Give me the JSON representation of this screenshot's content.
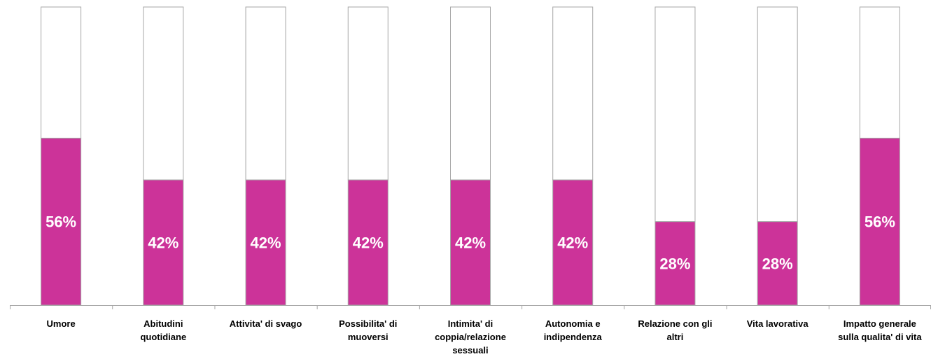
{
  "chart_data": {
    "type": "bar",
    "stacked": true,
    "categories": [
      "Umore",
      "Abitudini quotidiane",
      "Attivita' di svago",
      "Possibilita' di muoversi",
      "Intimita' di coppia/relazione sessuali",
      "Autonomia e indipendenza",
      "Relazione con gli altri",
      "Vita lavorativa",
      "Impatto generale sulla qualita' di vita"
    ],
    "category_lines": [
      [
        "Umore"
      ],
      [
        "Abitudini",
        "quotidiane"
      ],
      [
        "Attivita' di svago"
      ],
      [
        "Possibilita' di",
        "muoversi"
      ],
      [
        "Intimita' di",
        "coppia/relazione",
        "sessuali"
      ],
      [
        "Autonomia e",
        "indipendenza"
      ],
      [
        "Relazione con gli",
        "altri"
      ],
      [
        "Vita lavorativa"
      ],
      [
        "Impatto generale",
        "sulla qualita' di vita"
      ]
    ],
    "values": [
      56,
      42,
      42,
      42,
      42,
      42,
      28,
      28,
      56
    ],
    "data_labels": [
      "56%",
      "42%",
      "42%",
      "42%",
      "42%",
      "42%",
      "28%",
      "28%",
      "56%"
    ],
    "remainder_values": [
      44,
      58,
      58,
      58,
      58,
      58,
      72,
      72,
      44
    ],
    "ylim": [
      0,
      100
    ],
    "title": "",
    "xlabel": "",
    "ylabel": "",
    "grid": false,
    "legend": "none",
    "colors": {
      "bar_fill": "#cc3399",
      "remainder_fill": "#ffffff",
      "remainder_stroke": "#a6a6a6",
      "axis": "#a6a6a6",
      "data_label": "#ffffff",
      "category_label": "#000000"
    }
  }
}
